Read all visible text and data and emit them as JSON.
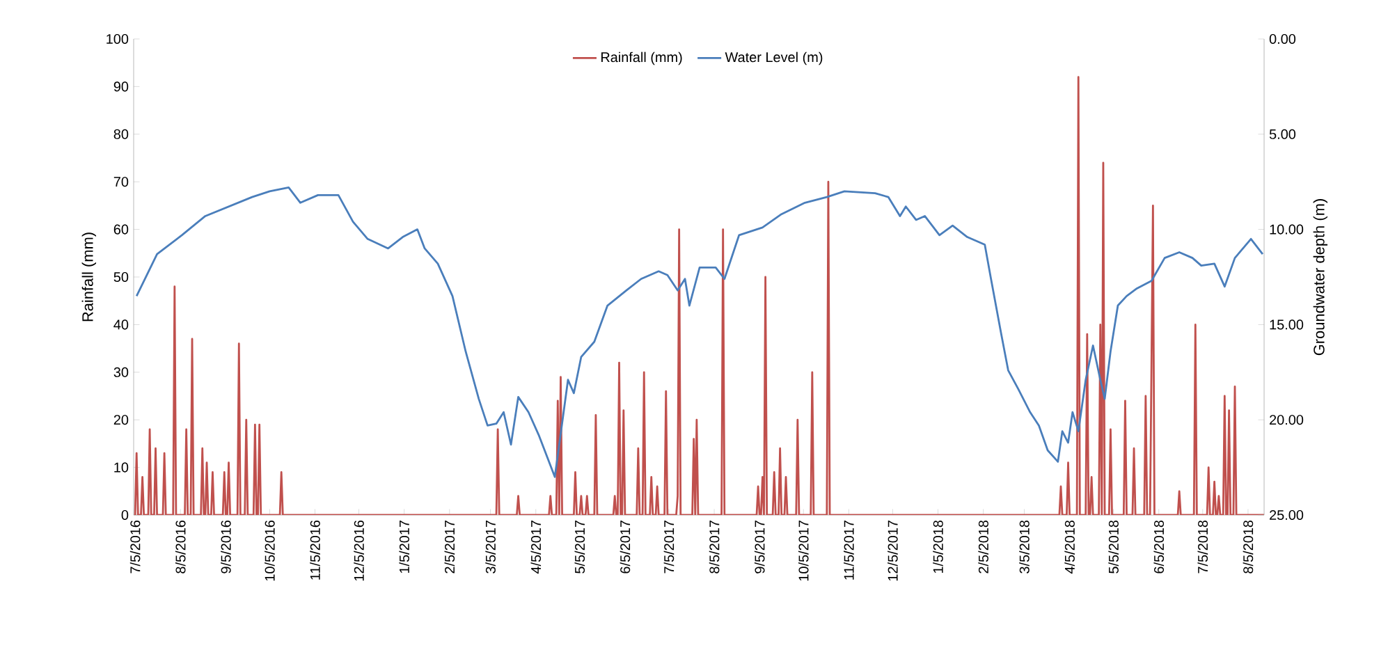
{
  "chart_data": {
    "type": "line",
    "ylabel": "Rainfall (mm)",
    "y2label": "Groundwater depth (m)",
    "xlim": [
      "2016-07-04",
      "2018-08-16"
    ],
    "xticks": [
      {
        "value": "2016-07-05",
        "label": "7/5/2016"
      },
      {
        "value": "2016-08-05",
        "label": "8/5/2016"
      },
      {
        "value": "2016-09-05",
        "label": "9/5/2016"
      },
      {
        "value": "2016-10-05",
        "label": "10/5/2016"
      },
      {
        "value": "2016-11-05",
        "label": "11/5/2016"
      },
      {
        "value": "2016-12-05",
        "label": "12/5/2016"
      },
      {
        "value": "2017-01-05",
        "label": "1/5/2017"
      },
      {
        "value": "2017-02-05",
        "label": "2/5/2017"
      },
      {
        "value": "2017-03-05",
        "label": "3/5/2017"
      },
      {
        "value": "2017-04-05",
        "label": "4/5/2017"
      },
      {
        "value": "2017-05-05",
        "label": "5/5/2017"
      },
      {
        "value": "2017-06-05",
        "label": "6/5/2017"
      },
      {
        "value": "2017-07-05",
        "label": "7/5/2017"
      },
      {
        "value": "2017-08-05",
        "label": "8/5/2017"
      },
      {
        "value": "2017-09-05",
        "label": "9/5/2017"
      },
      {
        "value": "2017-10-05",
        "label": "10/5/2017"
      },
      {
        "value": "2017-11-05",
        "label": "11/5/2017"
      },
      {
        "value": "2017-12-05",
        "label": "12/5/2017"
      },
      {
        "value": "2018-01-05",
        "label": "1/5/2018"
      },
      {
        "value": "2018-02-05",
        "label": "2/5/2018"
      },
      {
        "value": "2018-03-05",
        "label": "3/5/2018"
      },
      {
        "value": "2018-04-05",
        "label": "4/5/2018"
      },
      {
        "value": "2018-05-05",
        "label": "5/5/2018"
      },
      {
        "value": "2018-06-05",
        "label": "6/5/2018"
      },
      {
        "value": "2018-07-05",
        "label": "7/5/2018"
      },
      {
        "value": "2018-08-05",
        "label": "8/5/2018"
      }
    ],
    "ylim": [
      0,
      100
    ],
    "yticks": [
      0,
      10,
      20,
      30,
      40,
      50,
      60,
      70,
      80,
      90,
      100
    ],
    "y2lim": [
      25,
      0
    ],
    "y2ticks": [
      {
        "value": 0,
        "label": "0.00"
      },
      {
        "value": 5,
        "label": "5.00"
      },
      {
        "value": 10,
        "label": "10.00"
      },
      {
        "value": 15,
        "label": "15.00"
      },
      {
        "value": 20,
        "label": "20.00"
      },
      {
        "value": 25,
        "label": "25.00"
      }
    ],
    "legend": "top",
    "marker": "none",
    "line_style": "solid",
    "series": [
      {
        "name": "Rainfall (mm)",
        "color": "#c0504d",
        "x": [
          "2016-07-05",
          "2016-07-06",
          "2016-07-07",
          "2016-07-09",
          "2016-07-10",
          "2016-07-11",
          "2016-07-14",
          "2016-07-15",
          "2016-07-16",
          "2016-07-18",
          "2016-07-19",
          "2016-07-20",
          "2016-07-24",
          "2016-07-25",
          "2016-07-26",
          "2016-07-31",
          "2016-08-01",
          "2016-08-02",
          "2016-08-08",
          "2016-08-09",
          "2016-08-10",
          "2016-08-12",
          "2016-08-13",
          "2016-08-14",
          "2016-08-19",
          "2016-08-20",
          "2016-08-21",
          "2016-08-22",
          "2016-08-23",
          "2016-08-24",
          "2016-08-26",
          "2016-08-27",
          "2016-08-28",
          "2016-09-03",
          "2016-09-04",
          "2016-09-05",
          "2016-09-06",
          "2016-09-07",
          "2016-09-08",
          "2016-09-13",
          "2016-09-14",
          "2016-09-15",
          "2016-09-18",
          "2016-09-19",
          "2016-09-20",
          "2016-09-24",
          "2016-09-25",
          "2016-09-26",
          "2016-09-27",
          "2016-09-28",
          "2016-09-29",
          "2016-10-12",
          "2016-10-13",
          "2016-10-14",
          "2017-03-09",
          "2017-03-10",
          "2017-03-11",
          "2017-03-23",
          "2017-03-24",
          "2017-03-25",
          "2017-04-14",
          "2017-04-15",
          "2017-04-16",
          "2017-04-19",
          "2017-04-20",
          "2017-04-21",
          "2017-04-22",
          "2017-04-23",
          "2017-05-01",
          "2017-05-02",
          "2017-05-03",
          "2017-05-05",
          "2017-05-06",
          "2017-05-07",
          "2017-05-09",
          "2017-05-10",
          "2017-05-11",
          "2017-05-15",
          "2017-05-16",
          "2017-05-17",
          "2017-05-28",
          "2017-05-29",
          "2017-05-30",
          "2017-05-31",
          "2017-06-01",
          "2017-06-02",
          "2017-06-03",
          "2017-06-04",
          "2017-06-05",
          "2017-06-13",
          "2017-06-14",
          "2017-06-15",
          "2017-06-17",
          "2017-06-18",
          "2017-06-19",
          "2017-06-22",
          "2017-06-23",
          "2017-06-24",
          "2017-06-26",
          "2017-06-27",
          "2017-06-28",
          "2017-07-02",
          "2017-07-03",
          "2017-07-04",
          "2017-07-10",
          "2017-07-11",
          "2017-07-12",
          "2017-07-13",
          "2017-07-21",
          "2017-07-22",
          "2017-07-23",
          "2017-07-24",
          "2017-07-25",
          "2017-08-10",
          "2017-08-11",
          "2017-08-12",
          "2017-09-03",
          "2017-09-04",
          "2017-09-05",
          "2017-09-06",
          "2017-09-07",
          "2017-09-08",
          "2017-09-09",
          "2017-09-10",
          "2017-09-14",
          "2017-09-15",
          "2017-09-16",
          "2017-09-18",
          "2017-09-19",
          "2017-09-20",
          "2017-09-22",
          "2017-09-23",
          "2017-09-24",
          "2017-09-30",
          "2017-10-01",
          "2017-10-02",
          "2017-10-10",
          "2017-10-11",
          "2017-10-12",
          "2017-10-21",
          "2017-10-22",
          "2017-10-23",
          "2018-03-29",
          "2018-03-30",
          "2018-03-31",
          "2018-04-03",
          "2018-04-04",
          "2018-04-05",
          "2018-04-10",
          "2018-04-11",
          "2018-04-12",
          "2018-04-16",
          "2018-04-17",
          "2018-04-18",
          "2018-04-19",
          "2018-04-20",
          "2018-04-21",
          "2018-04-25",
          "2018-04-26",
          "2018-04-27",
          "2018-04-28",
          "2018-04-29",
          "2018-05-02",
          "2018-05-03",
          "2018-05-04",
          "2018-05-12",
          "2018-05-13",
          "2018-05-14",
          "2018-05-18",
          "2018-05-19",
          "2018-05-20",
          "2018-05-26",
          "2018-05-27",
          "2018-05-28",
          "2018-05-30",
          "2018-05-31",
          "2018-06-01",
          "2018-06-02",
          "2018-06-18",
          "2018-06-19",
          "2018-06-20",
          "2018-06-29",
          "2018-06-30",
          "2018-07-01",
          "2018-07-08",
          "2018-07-09",
          "2018-07-10",
          "2018-07-12",
          "2018-07-13",
          "2018-07-14",
          "2018-07-15",
          "2018-07-16",
          "2018-07-17",
          "2018-07-19",
          "2018-07-20",
          "2018-07-21",
          "2018-07-22",
          "2018-07-23",
          "2018-07-24",
          "2018-07-26",
          "2018-07-27",
          "2018-07-28",
          "2018-08-16"
        ],
        "values": [
          0,
          13,
          0,
          0,
          8,
          0,
          0,
          18,
          0,
          0,
          14,
          0,
          0,
          13,
          0,
          0,
          48,
          0,
          0,
          18,
          0,
          0,
          37,
          0,
          0,
          14,
          0,
          0,
          11,
          0,
          0,
          9,
          0,
          0,
          9,
          0,
          0,
          11,
          0,
          0,
          36,
          0,
          0,
          20,
          0,
          0,
          19,
          0,
          0,
          19,
          0,
          0,
          9,
          0,
          0,
          18,
          0,
          0,
          4,
          0,
          0,
          4,
          0,
          0,
          24,
          0,
          29,
          0,
          0,
          9,
          0,
          0,
          4,
          0,
          0,
          4,
          0,
          0,
          21,
          0,
          0,
          4,
          0,
          0,
          32,
          0,
          0,
          22,
          0,
          0,
          14,
          0,
          0,
          30,
          0,
          0,
          8,
          0,
          0,
          6,
          0,
          0,
          26,
          0,
          0,
          4,
          60,
          0,
          0,
          16,
          0,
          20,
          0,
          0,
          60,
          0,
          0,
          6,
          0,
          0,
          8,
          0,
          50,
          0,
          0,
          9,
          0,
          0,
          14,
          0,
          0,
          8,
          0,
          0,
          20,
          0,
          0,
          30,
          0,
          0,
          70,
          0,
          0,
          6,
          0,
          0,
          11,
          0,
          0,
          92,
          0,
          0,
          38,
          0,
          0,
          8,
          0,
          0,
          40,
          0,
          74,
          0,
          0,
          18,
          0,
          0,
          24,
          0,
          0,
          14,
          0,
          0,
          25,
          0,
          0,
          32,
          65,
          0,
          0,
          5,
          0,
          0,
          40,
          0,
          0,
          10,
          0,
          0,
          7,
          0,
          0,
          4,
          0,
          0,
          25,
          0,
          0,
          22,
          0,
          0,
          27,
          0,
          0
        ]
      },
      {
        "name": "Water Level (m)",
        "color": "#4a7ebb",
        "axis": "y2",
        "x": [
          "2016-07-06",
          "2016-07-20",
          "2016-08-06",
          "2016-08-22",
          "2016-09-07",
          "2016-09-23",
          "2016-10-05",
          "2016-10-18",
          "2016-10-26",
          "2016-11-07",
          "2016-11-21",
          "2016-12-01",
          "2016-12-11",
          "2016-12-25",
          "2017-01-04",
          "2017-01-14",
          "2017-01-19",
          "2017-01-28",
          "2017-02-07",
          "2017-02-16",
          "2017-02-25",
          "2017-03-03",
          "2017-03-09",
          "2017-03-14",
          "2017-03-19",
          "2017-03-24",
          "2017-03-31",
          "2017-04-07",
          "2017-04-18",
          "2017-04-21",
          "2017-04-27",
          "2017-05-01",
          "2017-05-06",
          "2017-05-15",
          "2017-05-24",
          "2017-06-06",
          "2017-06-16",
          "2017-06-28",
          "2017-07-04",
          "2017-07-11",
          "2017-07-16",
          "2017-07-19",
          "2017-07-26",
          "2017-08-06",
          "2017-08-12",
          "2017-08-22",
          "2017-09-07",
          "2017-09-20",
          "2017-10-06",
          "2017-10-21",
          "2017-11-02",
          "2017-11-23",
          "2017-12-02",
          "2017-12-10",
          "2017-12-14",
          "2017-12-21",
          "2017-12-27",
          "2018-01-06",
          "2018-01-15",
          "2018-01-25",
          "2018-02-06",
          "2018-02-10",
          "2018-02-17",
          "2018-02-22",
          "2018-03-01",
          "2018-03-09",
          "2018-03-15",
          "2018-03-21",
          "2018-03-28",
          "2018-03-31",
          "2018-04-04",
          "2018-04-07",
          "2018-04-11",
          "2018-04-16",
          "2018-04-21",
          "2018-04-26",
          "2018-04-29",
          "2018-05-03",
          "2018-05-08",
          "2018-05-14",
          "2018-05-21",
          "2018-05-31",
          "2018-06-09",
          "2018-06-19",
          "2018-06-28",
          "2018-07-04",
          "2018-07-13",
          "2018-07-20",
          "2018-07-27",
          "2018-08-07",
          "2018-08-15"
        ],
        "values": [
          13.5,
          11.3,
          10.3,
          9.3,
          8.8,
          8.3,
          8.0,
          7.8,
          8.6,
          8.2,
          8.2,
          9.6,
          10.5,
          11.0,
          10.4,
          10.0,
          11.0,
          11.8,
          13.5,
          16.4,
          18.9,
          20.3,
          20.2,
          19.6,
          21.3,
          18.8,
          19.6,
          20.8,
          23.0,
          21.3,
          17.9,
          18.6,
          16.7,
          15.9,
          14.0,
          13.2,
          12.6,
          12.2,
          12.4,
          13.2,
          12.6,
          14.0,
          12.0,
          12.0,
          12.6,
          10.3,
          9.9,
          9.2,
          8.6,
          8.3,
          8.0,
          8.1,
          8.3,
          9.3,
          8.8,
          9.5,
          9.3,
          10.3,
          9.8,
          10.4,
          10.8,
          12.5,
          15.4,
          17.4,
          18.4,
          19.6,
          20.3,
          21.6,
          22.2,
          20.6,
          21.2,
          19.6,
          20.6,
          17.9,
          16.1,
          17.9,
          18.9,
          16.4,
          14.0,
          13.5,
          13.1,
          12.7,
          11.5,
          11.2,
          11.5,
          11.9,
          11.8,
          13.0,
          11.5,
          10.5,
          11.3
        ]
      }
    ]
  }
}
